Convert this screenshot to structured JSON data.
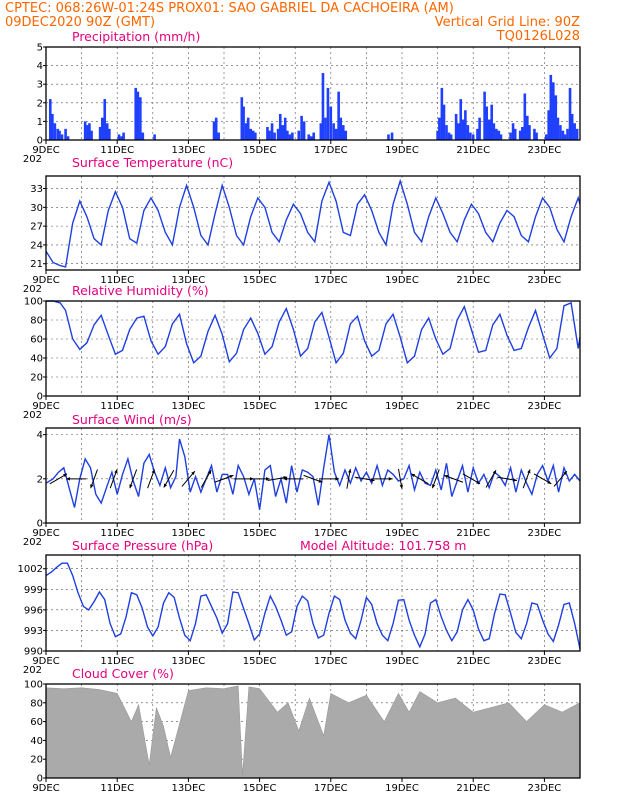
{
  "header": {
    "line1": "CPTEC:   068:26W-01:24S   PROX01: SAO GABRIEL DA CACHOEIRA (AM)",
    "date": "09DEC2020 90Z (GMT)",
    "grid_note": "Vertical Grid Line: 90Z",
    "code": "TQ0126L028"
  },
  "colors": {
    "header": "#ff6600",
    "panel_title": "#e6007e",
    "line": "#1f3fe0",
    "precip_bar": "#2040ff",
    "cloud": "#aaaaaa",
    "frame": "#000000"
  },
  "x_axis": {
    "day_start": 9,
    "day_end": 24,
    "tick_labels": [
      "9DEC",
      "11DEC",
      "13DEC",
      "15DEC",
      "17DEC",
      "19DEC",
      "21DEC",
      "23DEC"
    ],
    "year_stub": "202"
  },
  "chart_data": [
    {
      "type": "bar",
      "title": "Precipitation (mm/h)",
      "ylim": [
        0,
        5
      ],
      "yticks": [
        "0",
        "1",
        "2",
        "3",
        "4",
        "5"
      ],
      "grid": true,
      "x": [
        9.12,
        9.18,
        9.25,
        9.33,
        9.38,
        9.45,
        9.55,
        9.62,
        10.1,
        10.17,
        10.22,
        10.28,
        10.52,
        10.58,
        10.65,
        10.72,
        10.78,
        11.05,
        11.12,
        11.18,
        11.52,
        11.58,
        11.65,
        11.72,
        12.05,
        13.72,
        13.78,
        13.85,
        14.5,
        14.55,
        14.62,
        14.68,
        14.75,
        14.82,
        14.88,
        15.22,
        15.28,
        15.35,
        15.42,
        15.52,
        15.58,
        15.65,
        15.72,
        15.78,
        15.85,
        15.92,
        16.1,
        16.18,
        16.25,
        16.38,
        16.45,
        16.52,
        16.72,
        16.78,
        16.85,
        16.92,
        17.0,
        17.08,
        17.15,
        17.22,
        17.28,
        17.35,
        17.42,
        18.62,
        18.72,
        20.0,
        20.05,
        20.12,
        20.18,
        20.25,
        20.32,
        20.38,
        20.52,
        20.58,
        20.65,
        20.72,
        20.78,
        20.85,
        20.92,
        21.0,
        21.12,
        21.18,
        21.32,
        21.38,
        21.45,
        21.52,
        21.58,
        21.65,
        21.72,
        21.78,
        22.05,
        22.12,
        22.18,
        22.32,
        22.38,
        22.45,
        22.52,
        22.58,
        22.72,
        22.78,
        23.05,
        23.12,
        23.18,
        23.25,
        23.32,
        23.38,
        23.45,
        23.52,
        23.58,
        23.65,
        23.72,
        23.78,
        23.85,
        23.92
      ],
      "values": [
        2.2,
        1.4,
        0.9,
        0.6,
        0.5,
        0.3,
        0.6,
        0.2,
        1.0,
        0.8,
        0.9,
        0.5,
        0.7,
        1.2,
        2.2,
        0.9,
        0.6,
        0.3,
        0.2,
        0.4,
        2.8,
        2.6,
        2.3,
        0.4,
        0.3,
        1.0,
        1.2,
        0.4,
        2.3,
        1.8,
        0.9,
        1.2,
        0.6,
        0.5,
        0.4,
        0.7,
        0.5,
        0.9,
        0.4,
        0.6,
        1.4,
        0.8,
        1.2,
        0.5,
        0.3,
        0.4,
        0.5,
        1.3,
        1.0,
        0.3,
        0.2,
        0.4,
        0.9,
        3.6,
        1.2,
        2.8,
        1.8,
        0.9,
        0.6,
        2.6,
        1.2,
        0.8,
        0.5,
        0.3,
        0.4,
        0.5,
        1.2,
        2.8,
        1.9,
        0.8,
        0.4,
        0.3,
        1.4,
        0.9,
        2.2,
        1.1,
        1.6,
        0.8,
        0.4,
        0.3,
        0.6,
        1.2,
        2.6,
        1.8,
        1.1,
        1.9,
        0.9,
        0.6,
        0.5,
        0.3,
        0.4,
        0.9,
        0.6,
        0.5,
        0.7,
        2.5,
        1.3,
        0.8,
        0.6,
        0.4,
        0.3,
        1.6,
        3.5,
        3.1,
        2.4,
        1.2,
        0.8,
        0.5,
        0.3,
        0.6,
        2.8,
        1.4,
        0.9,
        0.6
      ]
    },
    {
      "type": "line",
      "title": "Surface Temperature (nC)",
      "ylim": [
        20,
        35
      ],
      "yticks": [
        "21",
        "24",
        "27",
        "30",
        "33"
      ],
      "grid": true,
      "x": [
        9.0,
        9.2,
        9.4,
        9.55,
        9.75,
        9.95,
        10.15,
        10.35,
        10.55,
        10.75,
        10.95,
        11.15,
        11.35,
        11.55,
        11.75,
        11.95,
        12.15,
        12.35,
        12.55,
        12.75,
        12.95,
        13.15,
        13.35,
        13.55,
        13.75,
        13.95,
        14.15,
        14.35,
        14.55,
        14.75,
        14.95,
        15.15,
        15.35,
        15.55,
        15.75,
        15.95,
        16.15,
        16.35,
        16.55,
        16.75,
        16.95,
        17.15,
        17.35,
        17.55,
        17.75,
        17.95,
        18.15,
        18.35,
        18.55,
        18.75,
        18.95,
        19.15,
        19.35,
        19.55,
        19.75,
        19.95,
        20.15,
        20.35,
        20.55,
        20.75,
        20.95,
        21.15,
        21.35,
        21.55,
        21.75,
        21.95,
        22.15,
        22.35,
        22.55,
        22.75,
        22.95,
        23.15,
        23.35,
        23.55,
        23.75,
        23.95,
        24.0
      ],
      "values": [
        23,
        21.2,
        20.7,
        20.5,
        27.5,
        31,
        28.5,
        25,
        24,
        29.5,
        32.5,
        30,
        25,
        24.3,
        29.5,
        31.5,
        29.5,
        26,
        24,
        30,
        33.5,
        30,
        25.5,
        24,
        29,
        33.5,
        30,
        25.5,
        24,
        28.5,
        31.5,
        30,
        26,
        24.5,
        28,
        30.5,
        29,
        26,
        24.5,
        31,
        34,
        31,
        26,
        25.5,
        30.5,
        32,
        29.5,
        26,
        24,
        30.5,
        34.2,
        30.5,
        26,
        24.5,
        28.5,
        31.5,
        29,
        26,
        24.5,
        28,
        30.5,
        29,
        26,
        24.5,
        27.5,
        29.5,
        28.5,
        25.5,
        24.5,
        28.5,
        31.5,
        30,
        26.5,
        24.5,
        28.5,
        31.5,
        30.5
      ]
    },
    {
      "type": "line",
      "title": "Relative Humidity (%)",
      "ylim": [
        0,
        100
      ],
      "yticks": [
        "0",
        "20",
        "40",
        "60",
        "80",
        "100"
      ],
      "grid": true,
      "x": [
        9.0,
        9.2,
        9.4,
        9.55,
        9.75,
        9.95,
        10.15,
        10.35,
        10.55,
        10.75,
        10.95,
        11.15,
        11.35,
        11.55,
        11.75,
        11.95,
        12.15,
        12.35,
        12.55,
        12.75,
        12.95,
        13.15,
        13.35,
        13.55,
        13.75,
        13.95,
        14.15,
        14.35,
        14.55,
        14.75,
        14.95,
        15.15,
        15.35,
        15.55,
        15.75,
        15.95,
        16.15,
        16.35,
        16.55,
        16.75,
        16.95,
        17.15,
        17.35,
        17.55,
        17.75,
        17.95,
        18.15,
        18.35,
        18.55,
        18.75,
        18.95,
        19.15,
        19.35,
        19.55,
        19.75,
        19.95,
        20.15,
        20.35,
        20.55,
        20.75,
        20.95,
        21.15,
        21.35,
        21.55,
        21.75,
        21.95,
        22.15,
        22.35,
        22.55,
        22.75,
        22.95,
        23.15,
        23.35,
        23.55,
        23.75,
        23.95,
        24.0
      ],
      "values": [
        100,
        100,
        98,
        90,
        60,
        49,
        56,
        75,
        85,
        64,
        44,
        48,
        70,
        82,
        84,
        58,
        44,
        52,
        76,
        86,
        55,
        35,
        42,
        68,
        85,
        65,
        36,
        45,
        70,
        82,
        66,
        44,
        52,
        78,
        92,
        70,
        42,
        50,
        78,
        88,
        62,
        35,
        45,
        76,
        84,
        58,
        42,
        48,
        76,
        86,
        62,
        35,
        42,
        70,
        82,
        60,
        44,
        50,
        80,
        94,
        70,
        46,
        48,
        75,
        86,
        64,
        48,
        50,
        72,
        90,
        65,
        40,
        50,
        95,
        98,
        50,
        62
      ]
    },
    {
      "type": "line",
      "title": "Surface Wind (m/s)",
      "ylim": [
        0,
        4
      ],
      "yticks": [
        "0",
        "2",
        "4"
      ],
      "grid": true,
      "x": [
        9.0,
        9.2,
        9.35,
        9.5,
        9.65,
        9.8,
        9.95,
        10.1,
        10.25,
        10.4,
        10.55,
        10.7,
        10.85,
        11.0,
        11.15,
        11.3,
        11.45,
        11.6,
        11.75,
        11.9,
        12.05,
        12.2,
        12.35,
        12.5,
        12.65,
        12.75,
        12.9,
        13.05,
        13.2,
        13.35,
        13.5,
        13.65,
        13.8,
        13.95,
        14.1,
        14.25,
        14.4,
        14.55,
        14.7,
        14.85,
        15.0,
        15.15,
        15.3,
        15.45,
        15.6,
        15.75,
        15.9,
        16.05,
        16.2,
        16.35,
        16.5,
        16.65,
        16.8,
        16.95,
        17.1,
        17.25,
        17.4,
        17.55,
        17.7,
        17.85,
        18.0,
        18.15,
        18.3,
        18.45,
        18.6,
        18.75,
        18.9,
        19.05,
        19.2,
        19.35,
        19.5,
        19.65,
        19.8,
        19.95,
        20.1,
        20.25,
        20.4,
        20.55,
        20.7,
        20.85,
        21.0,
        21.15,
        21.3,
        21.45,
        21.6,
        21.75,
        21.9,
        22.05,
        22.2,
        22.35,
        22.5,
        22.65,
        22.8,
        22.95,
        23.1,
        23.25,
        23.4,
        23.55,
        23.7,
        23.85,
        24.0
      ],
      "values": [
        1.8,
        2.0,
        2.3,
        2.5,
        1.6,
        0.7,
        2.0,
        2.9,
        2.5,
        1.3,
        0.9,
        1.6,
        2.3,
        1.3,
        2.2,
        2.9,
        1.9,
        1.2,
        2.7,
        3.1,
        2.3,
        1.7,
        2.5,
        1.6,
        2.1,
        3.8,
        3.0,
        1.4,
        2.1,
        1.4,
        2.0,
        2.6,
        1.4,
        2.2,
        2.2,
        1.3,
        2.6,
        2.1,
        1.3,
        2.0,
        0.6,
        2.4,
        2.6,
        1.2,
        2.0,
        0.9,
        2.6,
        1.4,
        2.4,
        2.3,
        2.1,
        0.8,
        2.5,
        4.0,
        2.3,
        1.7,
        2.4,
        1.8,
        2.5,
        1.9,
        2.3,
        1.8,
        2.6,
        1.7,
        2.4,
        2.2,
        1.9,
        2.0,
        2.6,
        1.5,
        2.3,
        1.8,
        1.7,
        2.4,
        1.5,
        2.7,
        1.2,
        1.9,
        2.6,
        1.4,
        2.5,
        1.8,
        2.2,
        1.6,
        2.3,
        2.1,
        1.7,
        2.5,
        1.4,
        2.4,
        1.8,
        1.3,
        2.2,
        2.6,
        1.9,
        2.6,
        1.4,
        2.5,
        1.9,
        2.2,
        1.9
      ],
      "arrows_x": [
        9.35,
        9.85,
        10.35,
        10.9,
        11.45,
        11.95,
        12.45,
        13.0,
        13.5,
        14.0,
        14.55,
        15.0,
        15.5,
        15.95,
        16.5,
        16.95,
        17.5,
        17.95,
        18.45,
        18.95,
        19.5,
        19.95,
        20.45,
        20.95,
        21.5,
        21.95,
        22.5,
        22.95,
        23.45
      ],
      "arrows_dir_deg": [
        60,
        270,
        200,
        20,
        200,
        20,
        210,
        40,
        30,
        70,
        90,
        90,
        80,
        270,
        110,
        90,
        10,
        100,
        90,
        170,
        300,
        200,
        290,
        120,
        30,
        100,
        20,
        120,
        40
      ]
    },
    {
      "type": "line",
      "title": "Surface Pressure (hPa)",
      "annotation": "Model Altitude: 101.758  m",
      "ylim": [
        990,
        1004
      ],
      "yticks": [
        "990",
        "993",
        "996",
        "999",
        "1002"
      ],
      "grid": true,
      "x": [
        9.0,
        9.15,
        9.3,
        9.45,
        9.6,
        9.75,
        9.9,
        10.05,
        10.2,
        10.35,
        10.5,
        10.65,
        10.8,
        10.95,
        11.1,
        11.25,
        11.4,
        11.55,
        11.7,
        11.85,
        12.0,
        12.15,
        12.3,
        12.45,
        12.6,
        12.75,
        12.9,
        13.05,
        13.2,
        13.35,
        13.5,
        13.65,
        13.8,
        13.95,
        14.1,
        14.25,
        14.4,
        14.55,
        14.7,
        14.85,
        15.0,
        15.15,
        15.3,
        15.45,
        15.6,
        15.75,
        15.9,
        16.05,
        16.2,
        16.35,
        16.5,
        16.65,
        16.8,
        16.95,
        17.1,
        17.25,
        17.4,
        17.55,
        17.7,
        17.85,
        18.0,
        18.15,
        18.3,
        18.45,
        18.6,
        18.75,
        18.9,
        19.05,
        19.2,
        19.35,
        19.5,
        19.65,
        19.8,
        19.95,
        20.1,
        20.25,
        20.4,
        20.55,
        20.7,
        20.85,
        21.0,
        21.15,
        21.3,
        21.45,
        21.6,
        21.75,
        21.9,
        22.05,
        22.2,
        22.35,
        22.5,
        22.65,
        22.8,
        22.95,
        23.1,
        23.25,
        23.4,
        23.55,
        23.7,
        23.85,
        24.0
      ],
      "values": [
        1001,
        1001.5,
        1002.2,
        1002.8,
        1002.8,
        1001,
        998.5,
        996.5,
        996,
        997.2,
        998.6,
        997.5,
        994,
        992.1,
        992.5,
        995,
        998.5,
        998.2,
        996.3,
        993.5,
        992.2,
        993.5,
        997,
        998.5,
        997.8,
        994.8,
        992.3,
        991.5,
        994,
        998,
        998.2,
        996.5,
        994.8,
        992.6,
        994,
        998.6,
        998.5,
        996.2,
        994,
        991.6,
        992.5,
        995.5,
        998,
        996.5,
        994.5,
        992.3,
        992.8,
        996.5,
        998,
        997.3,
        994,
        991.9,
        992.3,
        995.5,
        998,
        997.5,
        994.5,
        992.6,
        991.8,
        994.5,
        997.8,
        996.8,
        994,
        992.3,
        991.5,
        994,
        997.4,
        997.5,
        994.5,
        992.3,
        990.6,
        992.5,
        997,
        997.5,
        995,
        993,
        991.5,
        992.8,
        996,
        997.5,
        996,
        993.2,
        991.5,
        991.8,
        995.5,
        998.3,
        998.2,
        995.5,
        992.7,
        991.8,
        994,
        997,
        996.8,
        994.5,
        992.5,
        991.4,
        993.8,
        996.8,
        997,
        994,
        990.3
      ]
    },
    {
      "type": "area",
      "title": "Cloud Cover (%)",
      "ylim": [
        0,
        100
      ],
      "yticks": [
        "0",
        "20",
        "40",
        "60",
        "80",
        "100"
      ],
      "grid": true,
      "x": [
        9.0,
        9.5,
        10.0,
        10.5,
        11.0,
        11.4,
        11.6,
        11.9,
        12.1,
        12.3,
        12.5,
        13.0,
        13.5,
        14.0,
        14.4,
        14.52,
        14.7,
        15.0,
        15.5,
        15.8,
        16.1,
        16.4,
        16.8,
        17.0,
        17.5,
        18.0,
        18.5,
        18.9,
        19.2,
        19.5,
        20.0,
        20.5,
        21.0,
        21.5,
        22.0,
        22.5,
        23.0,
        23.5,
        24.0
      ],
      "values": [
        96,
        95,
        96,
        94,
        90,
        60,
        78,
        14,
        75,
        55,
        22,
        93,
        96,
        95,
        98,
        3,
        97,
        95,
        70,
        80,
        50,
        85,
        45,
        90,
        80,
        88,
        60,
        90,
        70,
        92,
        80,
        85,
        70,
        75,
        80,
        60,
        78,
        70,
        80
      ]
    }
  ]
}
